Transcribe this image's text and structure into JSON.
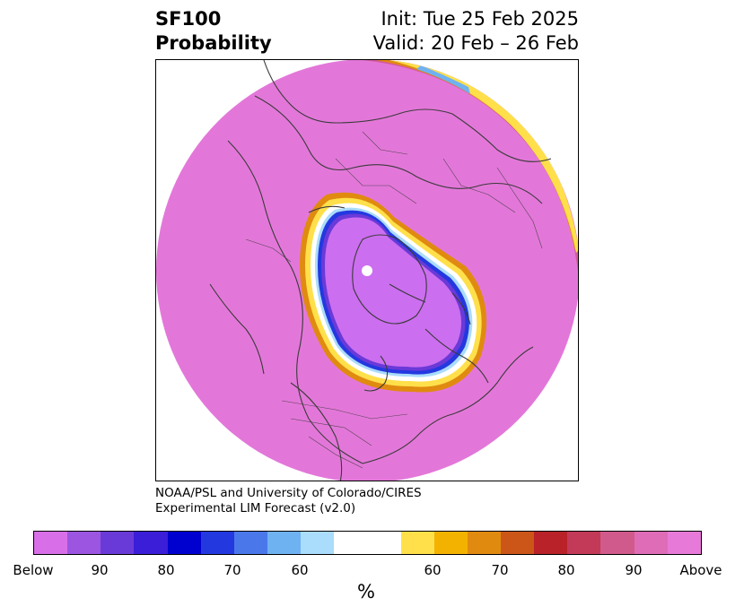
{
  "header": {
    "variable": "SF100",
    "product": "Probability",
    "init": "Init: Tue 25 Feb 2025",
    "valid": "Valid: 20 Feb – 26 Feb"
  },
  "credit": {
    "line1": "NOAA/PSL and University of Colorado/CIRES",
    "line2": "Experimental LIM Forecast (v2.0)"
  },
  "map": {
    "projection": "polar stereographic (North Pole)",
    "dominant_category": "Above",
    "below_region": "Arctic Ocean / high latitudes",
    "colors": {
      "above": "#e377d9",
      "below": "#cc6ef0",
      "coastline": "#3a3a3a"
    }
  },
  "colorbar": {
    "colors": [
      "#d86fe8",
      "#9b55e0",
      "#6a3ad8",
      "#3a1ed8",
      "#0000cf",
      "#2438e0",
      "#4a78ea",
      "#6fb2f2",
      "#aadcfb",
      "#ffffff",
      "#ffe04a",
      "#f4b200",
      "#e08a10",
      "#cc5518",
      "#b82228",
      "#c23a58",
      "#d05a8c",
      "#de6cb6",
      "#e77ad8"
    ],
    "labels": [
      "Below",
      "90",
      "80",
      "70",
      "60",
      "60",
      "70",
      "80",
      "90",
      "Above"
    ],
    "unit": "%"
  }
}
